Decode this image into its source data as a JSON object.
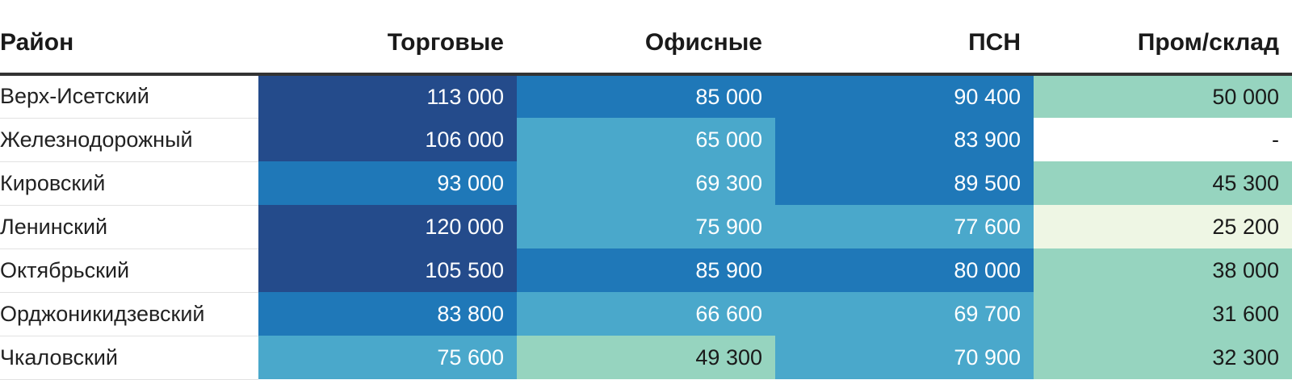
{
  "chart_data": {
    "type": "table",
    "columns": [
      "Район",
      "Торговые",
      "Офисные",
      "ПСН",
      "Пром/склад"
    ],
    "rows": [
      {
        "district": "Верх-Исетский",
        "values": [
          "113 000",
          "85 000",
          "90 400",
          "50 000"
        ]
      },
      {
        "district": "Железнодорожный",
        "values": [
          "106 000",
          "65 000",
          "83 900",
          "-"
        ]
      },
      {
        "district": "Кировский",
        "values": [
          "93 000",
          "69 300",
          "89 500",
          "45 300"
        ]
      },
      {
        "district": "Ленинский",
        "values": [
          "120 000",
          "75 900",
          "77 600",
          "25 200"
        ]
      },
      {
        "district": "Октябрьский",
        "values": [
          "105 500",
          "85 900",
          "80 000",
          "38 000"
        ]
      },
      {
        "district": "Орджоникидзевский",
        "values": [
          "83 800",
          "66 600",
          "69 700",
          "31 600"
        ]
      },
      {
        "district": "Чкаловский",
        "values": [
          "75 600",
          "49 300",
          "70 900",
          "32 300"
        ]
      }
    ],
    "color_scale": {
      "thresholds": [
        30000,
        60000,
        80000,
        100000
      ],
      "colors": [
        "#eef6e4",
        "#96d4bf",
        "#4aa8cb",
        "#1f78b8",
        "#244b8b"
      ],
      "text_colors": [
        "#1a1a1a",
        "#1a1a1a",
        "#ffffff",
        "#ffffff",
        "#ffffff"
      ],
      "missing_color": "#ffffff"
    }
  }
}
